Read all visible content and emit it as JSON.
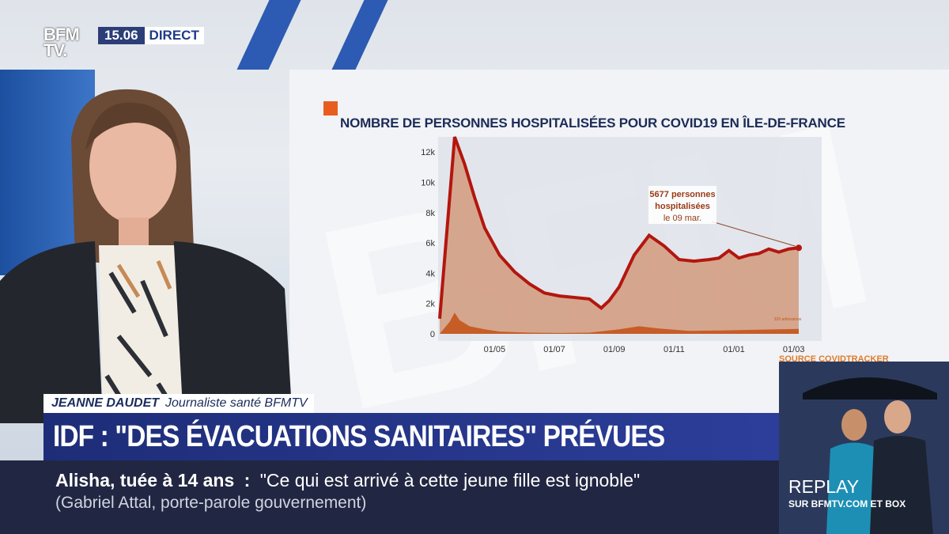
{
  "logo": {
    "line1": "BFM",
    "line2": "TV."
  },
  "clock": {
    "time": "15.06",
    "live_label": "DIRECT"
  },
  "chart_title": "NOMBRE DE PERSONNES HOSPITALISÉES POUR COVID19 EN ÎLE-DE-FRANCE",
  "chart_data": {
    "type": "area",
    "title": "NOMBRE DE PERSONNES HOSPITALISÉES POUR COVID19 EN ÎLE-DE-FRANCE",
    "xlabel": "",
    "ylabel": "",
    "x_ticks": [
      "01/05",
      "01/07",
      "01/09",
      "01/11",
      "01/01",
      "01/03"
    ],
    "y_ticks": [
      "0",
      "2k",
      "4k",
      "6k",
      "8k",
      "10k",
      "12k"
    ],
    "ylim": [
      0,
      13000
    ],
    "series": [
      {
        "name": "hospitalisées",
        "color": "#b3160f",
        "x": [
          0,
          15,
          25,
          35,
          45,
          60,
          75,
          90,
          105,
          120,
          135,
          150,
          162,
          170,
          180,
          195,
          210,
          225,
          240,
          255,
          270,
          280,
          290,
          300,
          310,
          320,
          330,
          340,
          350,
          360
        ],
        "values": [
          1000,
          13000,
          11200,
          9000,
          7000,
          5200,
          4100,
          3300,
          2700,
          2500,
          2400,
          2300,
          1700,
          2200,
          3100,
          5200,
          6500,
          5800,
          4900,
          4800,
          4900,
          5000,
          5500,
          5000,
          5200,
          5300,
          5600,
          5400,
          5600,
          5677
        ]
      },
      {
        "name": "admissions",
        "color": "#c4551c",
        "x": [
          0,
          10,
          15,
          20,
          30,
          45,
          60,
          90,
          120,
          150,
          180,
          200,
          220,
          250,
          280,
          310,
          340,
          360
        ],
        "values": [
          0,
          800,
          1400,
          900,
          500,
          300,
          150,
          80,
          60,
          80,
          300,
          500,
          350,
          200,
          220,
          260,
          300,
          329
        ]
      }
    ],
    "annotations": [
      {
        "line1": "5677 personnes",
        "line2": "hospitalisées",
        "line3": "le 09 mar."
      },
      {
        "text": "329 admissions"
      }
    ]
  },
  "source_label": "SOURCE COVIDTRACKER",
  "presenter": {
    "name": "JEANNE DAUDET",
    "role": "Journaliste santé BFMTV"
  },
  "headline": "IDF : \"DES ÉVACUATIONS SANITAIRES\" PRÉVUES",
  "ticker": {
    "topic": "Alisha, tuée à 14 ans",
    "separator": ":",
    "quote": "\"Ce qui est arrivé à cette jeune fille est ignoble\"",
    "attribution": "(Gabriel Attal, porte-parole gouvernement)"
  },
  "replay": {
    "title": "REPLAY",
    "subtitle": "SUR BFMTV.COM ET BOX"
  }
}
